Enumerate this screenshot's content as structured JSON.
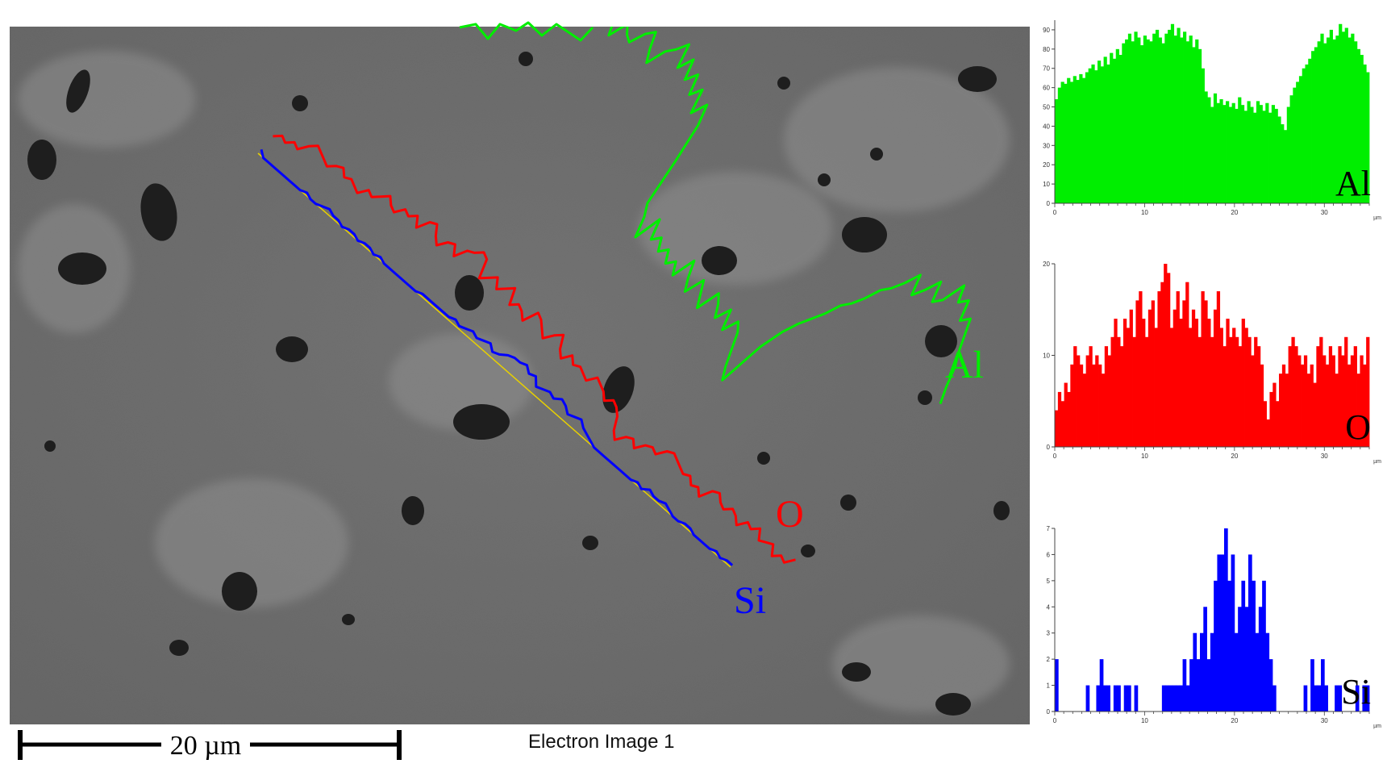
{
  "scale_bar": {
    "label": "20 µm"
  },
  "image_caption": "Electron Image 1",
  "overlay_labels": {
    "al": "Al",
    "o": "O",
    "si": "Si"
  },
  "colors": {
    "al": "#00ee00",
    "o": "#ff0000",
    "si": "#0000ff",
    "scan_line": "#e8d000"
  },
  "chart_data": [
    {
      "type": "bar",
      "element": "Al",
      "title": "",
      "xlabel": "µm",
      "ylabel": "",
      "xlim": [
        0,
        35
      ],
      "ylim": [
        0,
        95
      ],
      "x_ticks": [
        0,
        10,
        20,
        30
      ],
      "y_ticks": [
        0,
        10,
        20,
        30,
        40,
        50,
        60,
        70,
        80,
        90
      ],
      "x_unit": "µm",
      "label": "Al",
      "color": "#00ee00",
      "values": [
        54,
        60,
        63,
        62,
        65,
        63,
        66,
        64,
        67,
        65,
        68,
        70,
        72,
        69,
        74,
        71,
        76,
        72,
        78,
        75,
        80,
        77,
        83,
        85,
        88,
        84,
        89,
        86,
        82,
        87,
        85,
        84,
        88,
        90,
        86,
        83,
        88,
        90,
        93,
        87,
        91,
        86,
        89,
        84,
        87,
        81,
        85,
        80,
        70,
        58,
        55,
        50,
        57,
        52,
        54,
        51,
        53,
        50,
        52,
        49,
        55,
        51,
        48,
        53,
        50,
        47,
        53,
        51,
        48,
        52,
        47,
        51,
        49,
        45,
        41,
        38,
        50,
        56,
        60,
        63,
        66,
        70,
        72,
        75,
        79,
        81,
        84,
        88,
        83,
        86,
        90,
        85,
        87,
        93,
        89,
        91,
        86,
        88,
        84,
        80,
        77,
        72,
        68
      ]
    },
    {
      "type": "bar",
      "element": "O",
      "title": "",
      "xlabel": "µm",
      "ylabel": "",
      "xlim": [
        0,
        35
      ],
      "ylim": [
        0,
        20
      ],
      "x_ticks": [
        0,
        10,
        20,
        30
      ],
      "y_ticks": [
        0,
        10,
        20
      ],
      "x_unit": "µm",
      "label": "O",
      "color": "#ff0000",
      "values": [
        4,
        6,
        5,
        7,
        6,
        9,
        11,
        10,
        9,
        8,
        10,
        11,
        9,
        10,
        9,
        8,
        11,
        10,
        12,
        14,
        12,
        11,
        14,
        13,
        15,
        12,
        16,
        17,
        14,
        12,
        15,
        16,
        13,
        17,
        18,
        20,
        19,
        13,
        15,
        17,
        14,
        16,
        18,
        13,
        15,
        14,
        12,
        17,
        16,
        14,
        12,
        15,
        17,
        13,
        11,
        14,
        12,
        13,
        12,
        11,
        14,
        13,
        12,
        10,
        12,
        11,
        9,
        5,
        3,
        6,
        7,
        5,
        8,
        9,
        8,
        11,
        12,
        11,
        10,
        9,
        10,
        8,
        9,
        7,
        11,
        12,
        10,
        9,
        11,
        10,
        8,
        11,
        10,
        12,
        9,
        10,
        11,
        8,
        10,
        9,
        12
      ]
    },
    {
      "type": "bar",
      "element": "Si",
      "title": "",
      "xlabel": "µm",
      "ylabel": "",
      "xlim": [
        0,
        35
      ],
      "ylim": [
        0,
        7
      ],
      "x_ticks": [
        0,
        10,
        20,
        30
      ],
      "y_ticks": [
        0,
        1,
        2,
        3,
        4,
        5,
        6,
        7
      ],
      "x_unit": "µm",
      "label": "Si",
      "color": "#0000ff",
      "values": [
        2,
        0,
        0,
        0,
        0,
        0,
        0,
        0,
        0,
        1,
        0,
        0,
        1,
        2,
        1,
        1,
        0,
        1,
        1,
        0,
        1,
        1,
        0,
        1,
        0,
        0,
        0,
        0,
        0,
        0,
        0,
        1,
        1,
        1,
        1,
        1,
        1,
        2,
        1,
        2,
        3,
        2,
        3,
        4,
        2,
        3,
        5,
        6,
        6,
        7,
        5,
        6,
        3,
        4,
        5,
        4,
        6,
        5,
        3,
        4,
        5,
        3,
        2,
        1,
        0,
        0,
        0,
        0,
        0,
        0,
        0,
        0,
        1,
        0,
        2,
        1,
        1,
        2,
        1,
        0,
        0,
        1,
        1,
        0,
        0,
        0,
        0,
        1,
        0,
        1,
        1
      ]
    }
  ]
}
